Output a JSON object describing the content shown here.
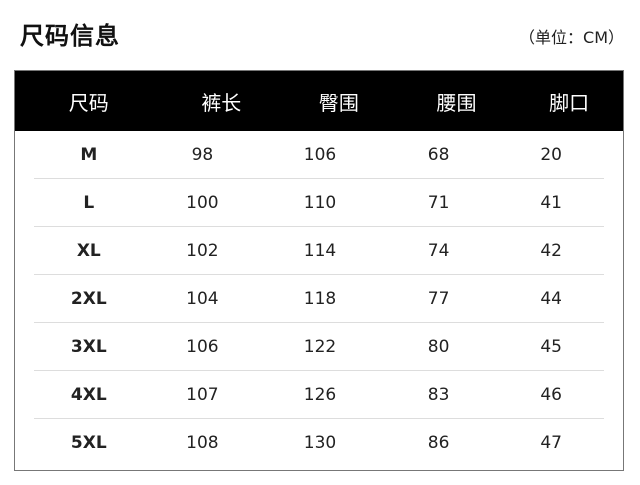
{
  "title": "尺码信息",
  "unit": "（单位：CM）",
  "table": {
    "headers": [
      "尺码",
      "裤长",
      "臀围",
      "腰围",
      "脚口"
    ],
    "rows": [
      [
        "M",
        "98",
        "106",
        "68",
        "20"
      ],
      [
        "L",
        "100",
        "110",
        "71",
        "41"
      ],
      [
        "XL",
        "102",
        "114",
        "74",
        "42"
      ],
      [
        "2XL",
        "104",
        "118",
        "77",
        "44"
      ],
      [
        "3XL",
        "106",
        "122",
        "80",
        "45"
      ],
      [
        "4XL",
        "107",
        "126",
        "83",
        "46"
      ],
      [
        "5XL",
        "108",
        "130",
        "86",
        "47"
      ]
    ]
  }
}
